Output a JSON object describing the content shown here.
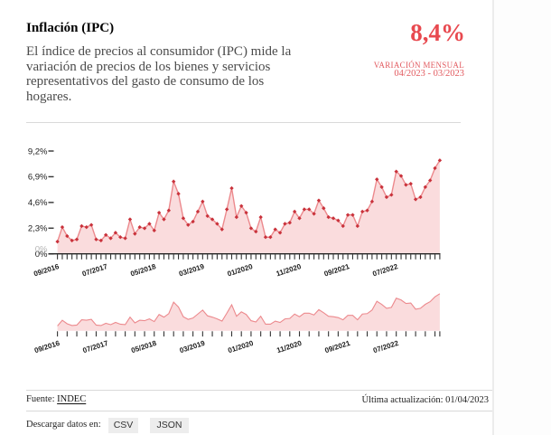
{
  "page": {
    "background": "#ffffff",
    "right_rule_color": "#ececec",
    "divider_color": "#d9d9d9"
  },
  "header": {
    "title": "Inflación (IPC)",
    "description_lines": [
      "El índice de precios al consumidor (IPC) mide la",
      "variación de precios de los bienes y servicios",
      "representativos del gasto de consumo de los",
      "hogares."
    ],
    "headline": {
      "value": "8,4%",
      "label": "VARIACIÓN MENSUAL",
      "period": "04/2023 - 03/2023",
      "color": "#e8494f"
    }
  },
  "chart_data": {
    "type": "line",
    "title": "",
    "x": [
      "09/2016",
      "10/2016",
      "11/2016",
      "12/2016",
      "01/2017",
      "02/2017",
      "03/2017",
      "04/2017",
      "05/2017",
      "06/2017",
      "07/2017",
      "08/2017",
      "09/2017",
      "10/2017",
      "11/2017",
      "12/2017",
      "01/2018",
      "02/2018",
      "03/2018",
      "04/2018",
      "05/2018",
      "06/2018",
      "07/2018",
      "08/2018",
      "09/2018",
      "10/2018",
      "11/2018",
      "12/2018",
      "01/2019",
      "02/2019",
      "03/2019",
      "04/2019",
      "05/2019",
      "06/2019",
      "07/2019",
      "08/2019",
      "09/2019",
      "10/2019",
      "11/2019",
      "12/2019",
      "01/2020",
      "02/2020",
      "03/2020",
      "04/2020",
      "05/2020",
      "06/2020",
      "07/2020",
      "08/2020",
      "09/2020",
      "10/2020",
      "11/2020",
      "12/2020",
      "01/2021",
      "02/2021",
      "03/2021",
      "04/2021",
      "05/2021",
      "06/2021",
      "07/2021",
      "08/2021",
      "09/2021",
      "10/2021",
      "11/2021",
      "12/2021",
      "01/2022",
      "02/2022",
      "03/2022",
      "04/2022",
      "05/2022",
      "06/2022",
      "07/2022",
      "08/2022",
      "09/2022",
      "10/2022",
      "11/2022",
      "12/2022",
      "01/2023",
      "02/2023",
      "03/2023",
      "04/2023"
    ],
    "values": [
      1.1,
      2.4,
      1.6,
      1.2,
      1.3,
      2.5,
      2.4,
      2.6,
      1.3,
      1.2,
      1.7,
      1.4,
      1.9,
      1.5,
      1.4,
      3.1,
      1.8,
      2.4,
      2.3,
      2.7,
      2.1,
      3.7,
      3.1,
      3.9,
      6.5,
      5.4,
      3.2,
      2.6,
      2.9,
      3.8,
      4.7,
      3.4,
      3.1,
      2.7,
      2.2,
      4.0,
      5.9,
      3.3,
      4.3,
      3.7,
      2.3,
      2.0,
      3.3,
      1.5,
      1.5,
      2.2,
      1.9,
      2.7,
      2.8,
      3.8,
      3.2,
      4.0,
      4.0,
      3.6,
      4.8,
      4.1,
      3.3,
      3.2,
      3.0,
      2.5,
      3.5,
      3.5,
      2.5,
      3.8,
      3.9,
      4.7,
      6.7,
      6.0,
      5.1,
      5.3,
      7.4,
      7.0,
      6.2,
      6.3,
      4.9,
      5.1,
      6.0,
      6.6,
      7.7,
      8.4
    ],
    "ylim": [
      0,
      9.24
    ],
    "y_ticks": {
      "values": [
        0,
        2.31,
        4.62,
        6.93,
        9.24
      ],
      "labels": [
        "0%",
        "2,3%",
        "4,6%",
        "6,9%",
        "9,2%"
      ]
    },
    "extra_zero_label": "0%",
    "x_label_indices": [
      0,
      10,
      20,
      30,
      40,
      50,
      60,
      70
    ],
    "legend": "none",
    "grid": "off",
    "context_chart": true,
    "colors": {
      "line": "#ec898d",
      "area": "#fadcdd",
      "marker": "#c9323b",
      "axis": "#333333",
      "tick_label": "#1c1c1c",
      "muted_label": "#b5b5b5"
    }
  },
  "footer": {
    "source_label": "Fuente:",
    "source_link": "INDEC",
    "updated": "Última actualización: 01/04/2023",
    "download_label": "Descargar datos en:",
    "buttons": [
      {
        "label": "CSV"
      },
      {
        "label": "JSON"
      }
    ]
  }
}
